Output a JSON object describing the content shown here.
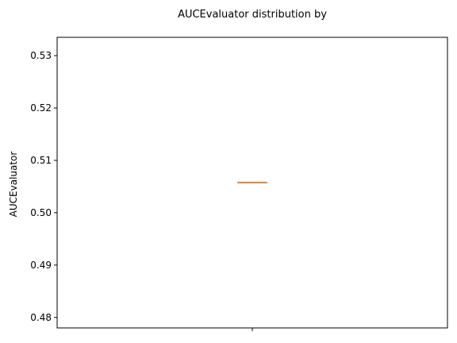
{
  "chart_data": {
    "type": "box",
    "title": "AUCEvaluator distribution by",
    "ylabel": "AUCEvaluator",
    "xlabel": "",
    "ylim": [
      0.478,
      0.5335
    ],
    "y_ticks": [
      "0.48",
      "0.49",
      "0.50",
      "0.51",
      "0.52",
      "0.53"
    ],
    "y_tick_values": [
      0.48,
      0.49,
      0.5,
      0.51,
      0.52,
      0.53
    ],
    "x_ticks": [
      ""
    ],
    "grid": false,
    "series": [
      {
        "min": 0.5058,
        "q1": 0.5058,
        "median": 0.5058,
        "q3": 0.5058,
        "max": 0.5058
      }
    ],
    "colors": {
      "box": "#000000",
      "median": "#ff7f0e",
      "axes": "#000000"
    }
  }
}
